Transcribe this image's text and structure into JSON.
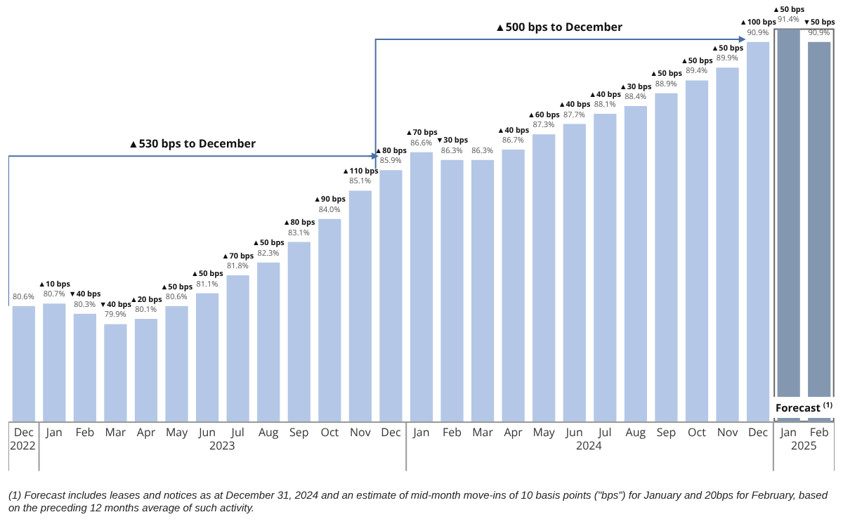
{
  "chart_data": {
    "type": "bar",
    "categories": [
      "Dec",
      "Jan",
      "Feb",
      "Mar",
      "Apr",
      "May",
      "Jun",
      "Jul",
      "Aug",
      "Sep",
      "Oct",
      "Nov",
      "Dec",
      "Jan",
      "Feb",
      "Mar",
      "Apr",
      "May",
      "Jun",
      "Jul",
      "Aug",
      "Sep",
      "Oct",
      "Nov",
      "Dec",
      "Jan",
      "Feb"
    ],
    "values": [
      80.6,
      80.7,
      80.3,
      79.9,
      80.1,
      80.6,
      81.1,
      81.8,
      82.3,
      83.1,
      84.0,
      85.1,
      85.9,
      86.6,
      86.3,
      86.3,
      86.7,
      87.3,
      87.7,
      88.1,
      88.4,
      88.9,
      89.4,
      89.9,
      90.9,
      91.4,
      90.9
    ],
    "colors": [
      "#b4c7e7",
      "#b4c7e7",
      "#b4c7e7",
      "#b4c7e7",
      "#b4c7e7",
      "#b4c7e7",
      "#b4c7e7",
      "#b4c7e7",
      "#b4c7e7",
      "#b4c7e7",
      "#b4c7e7",
      "#b4c7e7",
      "#b4c7e7",
      "#b4c7e7",
      "#b4c7e7",
      "#b4c7e7",
      "#b4c7e7",
      "#b4c7e7",
      "#b4c7e7",
      "#b4c7e7",
      "#b4c7e7",
      "#b4c7e7",
      "#b4c7e7",
      "#b4c7e7",
      "#b4c7e7",
      "#8497b0",
      "#8497b0"
    ],
    "value_labels": [
      "80.6%",
      "▲10 bps\n80.7%",
      "▼40 bps\n80.3%",
      "▼40 bps\n79.9%",
      "▲20 bps\n80.1%",
      "▲50 bps\n80.6%",
      "▲50 bps\n81.1%",
      "▲70 bps\n81.8%",
      "▲50 bps\n82.3%",
      "▲80 bps\n83.1%",
      "▲90 bps\n84.0%",
      "▲110 bps\n85.1%",
      "▲80 bps\n85.9%",
      "▲70 bps\n86.6%",
      "▼30 bps\n86.3%",
      "86.3%",
      "▲40 bps\n86.7%",
      "▲60 bps\n87.3%",
      "▲40 bps\n87.7%",
      "▲40 bps\n88.1%",
      "▲30 bps\n88.4%",
      "▲50 bps\n88.9%",
      "▲50 bps\n89.4%",
      "▲50 bps\n89.9%",
      "▲100 bps\n90.9%",
      "▲50 bps\n91.4%",
      "▼50 bps\n90.9%"
    ],
    "tick_labels": "x",
    "grid": false,
    "annotations": [
      "2022",
      "2023",
      "2024",
      "2025",
      "▲530 bps to December",
      "▲500 bps to December",
      "Forecast $^{(1)}$",
      "(1) Forecast includes leases and notices as at December 31, 2024 and an estimate of mid-month move-ins of 10 basis points (\"bps\") for January and 20bps for February, based on the preceding 12 months average of such activity."
    ]
  }
}
